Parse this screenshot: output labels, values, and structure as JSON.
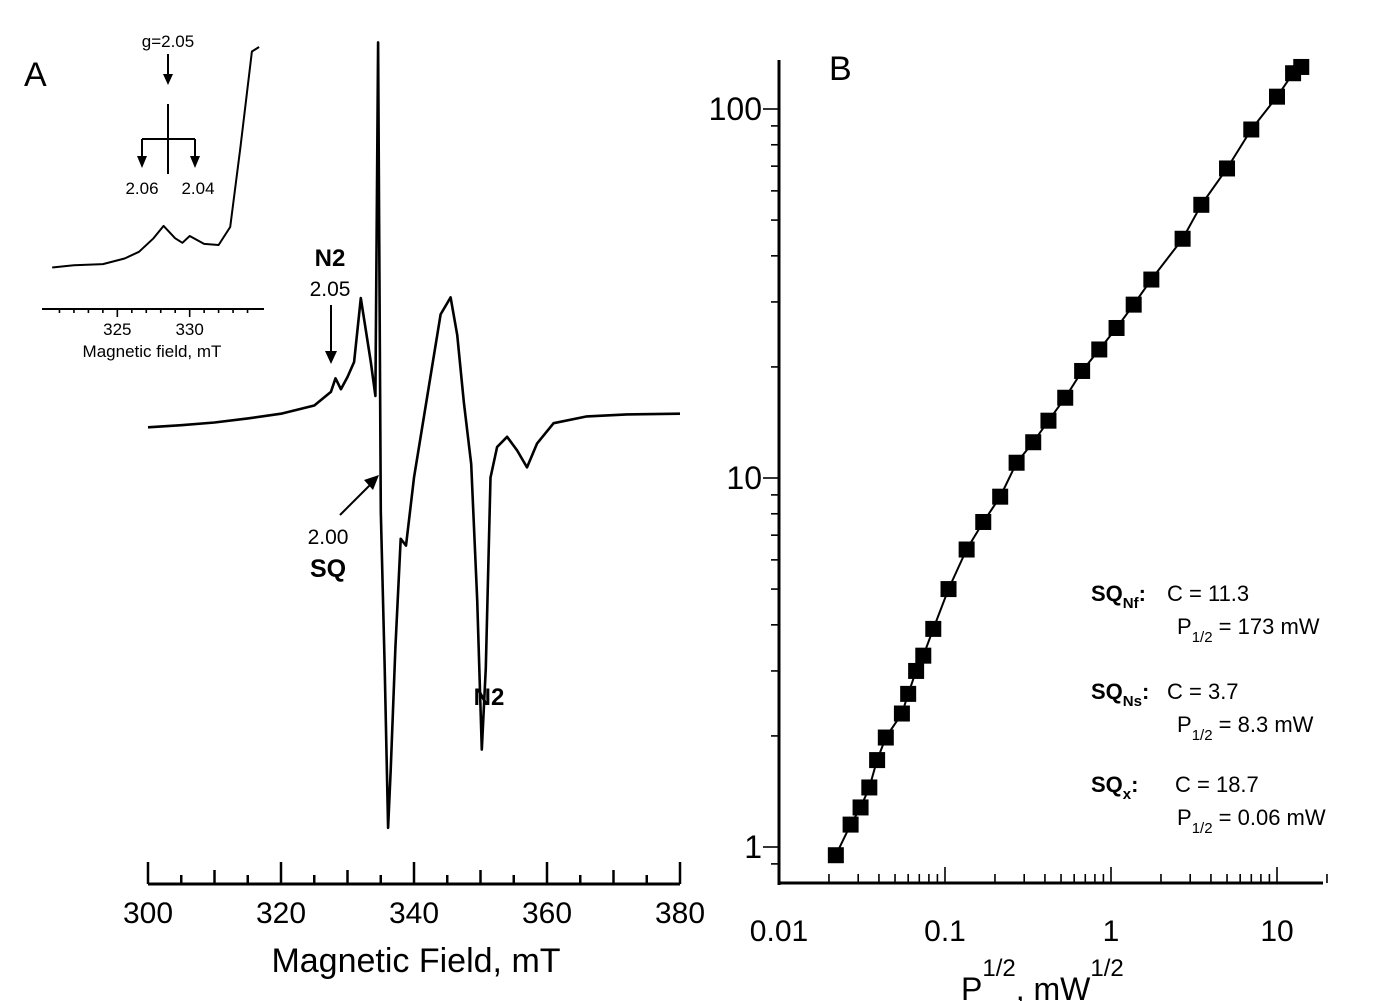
{
  "chart_data": [
    {
      "panel": "A",
      "type": "line",
      "xlabel": "Magnetic Field, mT",
      "xlim": [
        300,
        380
      ],
      "xticks": [
        "300",
        "320",
        "340",
        "360",
        "380"
      ],
      "trace": [
        [
          300,
          0.04
        ],
        [
          305,
          0.07
        ],
        [
          310,
          0.11
        ],
        [
          315,
          0.17
        ],
        [
          320,
          0.24
        ],
        [
          325,
          0.36
        ],
        [
          327.5,
          0.56
        ],
        [
          328.2,
          0.76
        ],
        [
          329,
          0.6
        ],
        [
          330,
          0.78
        ],
        [
          331,
          1.0
        ],
        [
          332,
          1.94
        ],
        [
          333.5,
          1.0
        ],
        [
          334.2,
          0.5
        ],
        [
          334.6,
          5.7
        ],
        [
          335.0,
          -1.2
        ],
        [
          335.6,
          -3.5
        ],
        [
          336.1,
          -5.85
        ],
        [
          336.5,
          -5.0
        ],
        [
          337.2,
          -3.2
        ],
        [
          338.0,
          -1.6
        ],
        [
          338.8,
          -1.7
        ],
        [
          340,
          -0.7
        ],
        [
          342,
          0.5
        ],
        [
          344,
          1.7
        ],
        [
          345.5,
          1.95
        ],
        [
          346.5,
          1.4
        ],
        [
          347.5,
          0.4
        ],
        [
          348.6,
          -0.5
        ],
        [
          349.5,
          -2.5
        ],
        [
          350.2,
          -4.7
        ],
        [
          350.8,
          -3.5
        ],
        [
          351.5,
          -0.7
        ],
        [
          352.5,
          -0.25
        ],
        [
          354,
          -0.1
        ],
        [
          355.5,
          -0.3
        ],
        [
          357,
          -0.55
        ],
        [
          358.5,
          -0.2
        ],
        [
          361,
          0.1
        ],
        [
          366,
          0.2
        ],
        [
          372,
          0.23
        ],
        [
          380,
          0.24
        ]
      ],
      "annotations": {
        "n2_low_label": "N2",
        "n2_low_g": "2.05",
        "sq_g": "2.00",
        "sq_label": "SQ",
        "n2_high_label": "N2"
      },
      "inset": {
        "xlabel": "Magnetic field, mT",
        "xlim": [
          320,
          335
        ],
        "xticks": [
          "325",
          "330"
        ],
        "g_label": "g=2.05",
        "split_labels": [
          "2.06",
          "2.04"
        ],
        "trace": [
          [
            320.5,
            2
          ],
          [
            322,
            3
          ],
          [
            324,
            3.5
          ],
          [
            325.5,
            6
          ],
          [
            326.5,
            9
          ],
          [
            327.5,
            15
          ],
          [
            328.2,
            20.5
          ],
          [
            329,
            15
          ],
          [
            329.5,
            13
          ],
          [
            330,
            16
          ],
          [
            331,
            12.5
          ],
          [
            332,
            12
          ],
          [
            332.8,
            20
          ],
          [
            333.5,
            55
          ],
          [
            334.3,
            98
          ],
          [
            334.8,
            100
          ]
        ]
      }
    },
    {
      "panel": "B",
      "type": "scatter",
      "scale": "log-log",
      "xlabel": "P",
      "xlabel_sub": "1/2",
      "xlabel_unit": ", mW",
      "xlabel_unit_sup": "1/2",
      "xticks": [
        "0.01",
        "0.1",
        "1",
        "10"
      ],
      "yticks": [
        "1",
        "10",
        "100"
      ],
      "points": [
        [
          0.022,
          0.95
        ],
        [
          0.027,
          1.15
        ],
        [
          0.031,
          1.28
        ],
        [
          0.035,
          1.45
        ],
        [
          0.039,
          1.72
        ],
        [
          0.044,
          1.98
        ],
        [
          0.055,
          2.3
        ],
        [
          0.06,
          2.6
        ],
        [
          0.067,
          3.0
        ],
        [
          0.074,
          3.3
        ],
        [
          0.085,
          3.9
        ],
        [
          0.105,
          5.0
        ],
        [
          0.135,
          6.4
        ],
        [
          0.17,
          7.6
        ],
        [
          0.215,
          8.9
        ],
        [
          0.27,
          11.0
        ],
        [
          0.34,
          12.5
        ],
        [
          0.42,
          14.3
        ],
        [
          0.53,
          16.5
        ],
        [
          0.67,
          19.5
        ],
        [
          0.85,
          22.3
        ],
        [
          1.08,
          25.5
        ],
        [
          1.37,
          29.5
        ],
        [
          1.75,
          34.5
        ],
        [
          2.7,
          44.5
        ],
        [
          3.5,
          55.0
        ],
        [
          5.0,
          69.0
        ],
        [
          7.0,
          88.0
        ],
        [
          10.0,
          108.0
        ],
        [
          12.5,
          125.0
        ],
        [
          14.0,
          130.0
        ]
      ],
      "legend": [
        {
          "name": "SQ",
          "sub": "Nf",
          "c": "C = 11.3",
          "p_pre": "P",
          "p_sub": "1/2",
          "p_val": " = 173 mW"
        },
        {
          "name": "SQ",
          "sub": "Ns",
          "c": "C = 3.7",
          "p_pre": "P",
          "p_sub": "1/2",
          "p_val": " = 8.3 mW"
        },
        {
          "name": "SQ",
          "sub": "x",
          "c": "C = 18.7",
          "p_pre": "P",
          "p_sub": "1/2",
          "p_val": " = 0.06 mW"
        }
      ]
    }
  ]
}
